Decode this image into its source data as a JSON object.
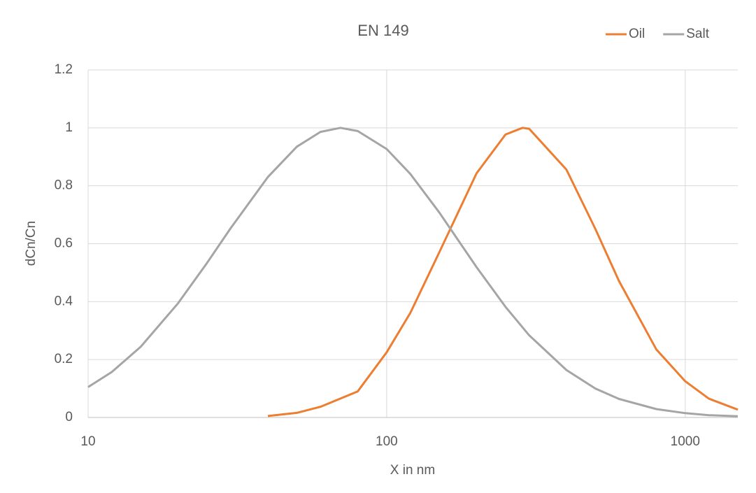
{
  "chart_data": {
    "type": "line",
    "title": "EN 149",
    "x_label": "X in nm",
    "y_label": "dCn/Cn",
    "x_scale": "log",
    "xlim": [
      10,
      1500
    ],
    "xticks": [
      10,
      100,
      1000
    ],
    "ylim": [
      0,
      1.2
    ],
    "yticks": [
      0,
      0.2,
      0.4,
      0.6,
      0.8,
      1,
      1.2
    ],
    "grid": true,
    "legend": "top-right",
    "series": [
      {
        "name": "Oil",
        "color": "#ed7d31",
        "x": [
          40,
          50,
          60,
          80,
          100,
          120,
          150,
          200,
          250,
          285,
          300,
          400,
          500,
          600,
          800,
          1000,
          1200,
          1500
        ],
        "values": [
          0.005,
          0.016,
          0.037,
          0.09,
          0.225,
          0.361,
          0.57,
          0.843,
          0.977,
          1,
          0.997,
          0.856,
          0.651,
          0.471,
          0.235,
          0.125,
          0.065,
          0.027
        ]
      },
      {
        "name": "Salt",
        "color": "#a5a5a5",
        "x": [
          10,
          12,
          15,
          20,
          25,
          30,
          40,
          50,
          60,
          70,
          80,
          100,
          120,
          150,
          200,
          250,
          300,
          400,
          500,
          600,
          800,
          1000,
          1200,
          1500
        ],
        "values": [
          0.105,
          0.157,
          0.244,
          0.394,
          0.533,
          0.653,
          0.83,
          0.935,
          0.986,
          1,
          0.989,
          0.927,
          0.841,
          0.708,
          0.519,
          0.382,
          0.284,
          0.164,
          0.1,
          0.064,
          0.029,
          0.015,
          0.008,
          0.004
        ]
      }
    ]
  }
}
